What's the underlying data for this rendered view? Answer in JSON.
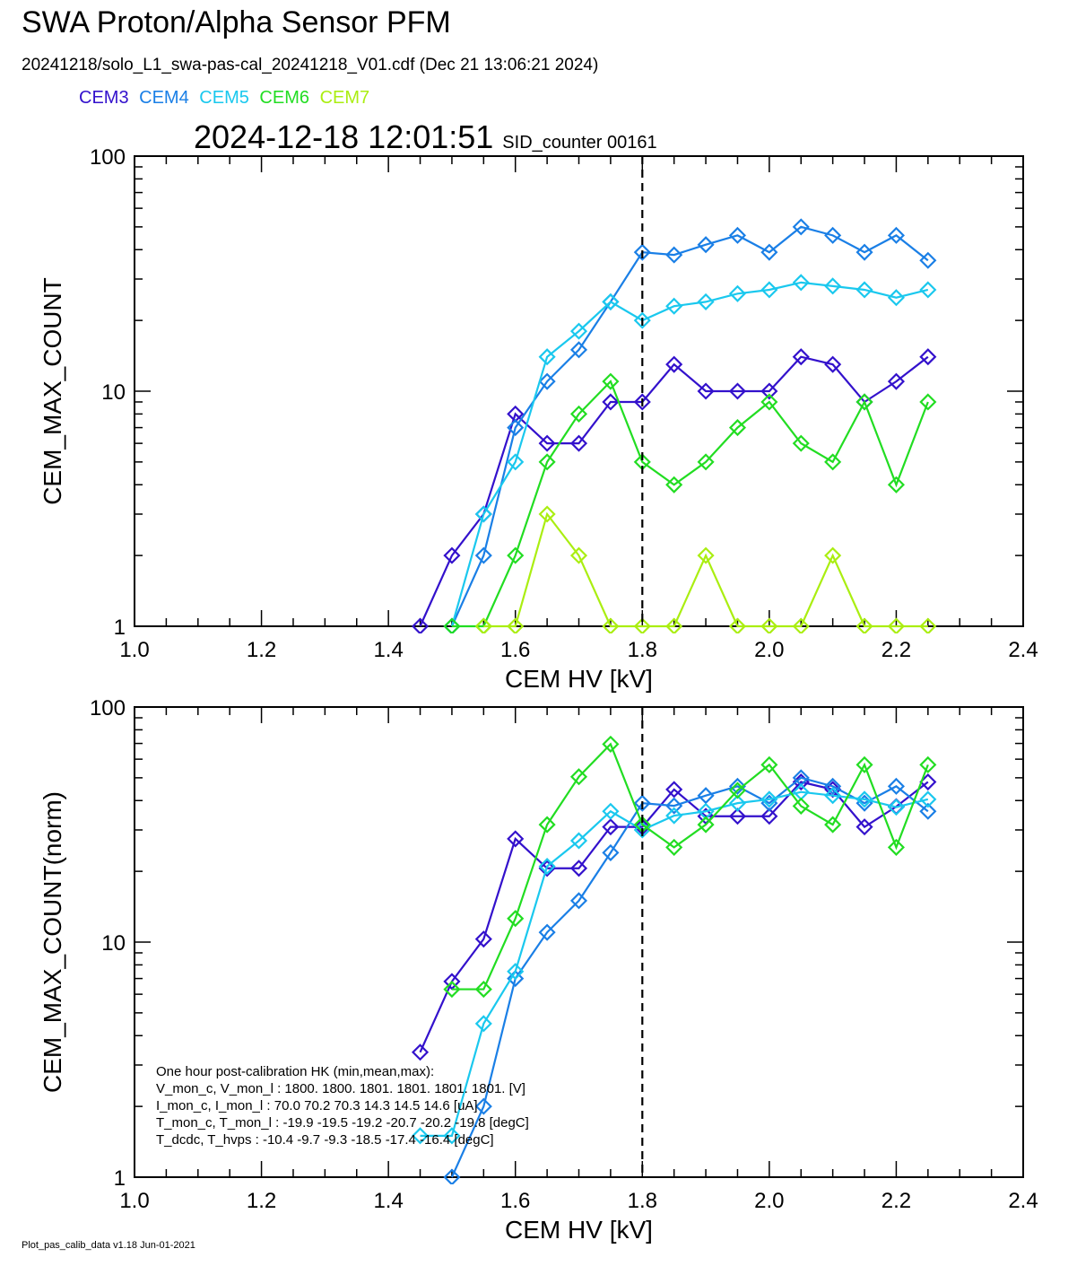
{
  "header": {
    "title": "SWA Proton/Alpha Sensor PFM",
    "file_line": "20241218/solo_L1_swa-pas-cal_20241218_V01.cdf  (Dec 21 13:06:21 2024)",
    "timestamp": "2024-12-18 12:01:51",
    "sid_counter": "SID_counter 00161"
  },
  "footer": "Plot_pas_calib_data v1.18 Jun-01-2021",
  "legend": [
    {
      "name": "CEM3",
      "color": "#3311cc"
    },
    {
      "name": "CEM4",
      "color": "#1a7fe6"
    },
    {
      "name": "CEM5",
      "color": "#1ac8ee"
    },
    {
      "name": "CEM6",
      "color": "#22dd22"
    },
    {
      "name": "CEM7",
      "color": "#aaee11"
    }
  ],
  "hk_box": {
    "lines": [
      "One hour post-calibration HK (min,mean,max):",
      "V_mon_c, V_mon_l :    1800.  1800.  1801.      1801.  1801.  1801.  [V]",
      "I_mon_c,  I_mon_l :      70.0   70.2   70.3        14.3   14.5   14.6  [uA]",
      "T_mon_c, T_mon_l :   -19.9  -19.5  -19.2       -20.7  -20.2  -19.8  [degC]",
      "T_dcdc,    T_hvps :     -10.4   -9.7   -9.3        -18.5  -17.4  -16.4  [degC]"
    ]
  },
  "chart_data": [
    {
      "type": "line",
      "title": "",
      "xlabel": "CEM HV [kV]",
      "ylabel": "CEM_MAX_COUNT",
      "xlim": [
        1.0,
        2.4
      ],
      "ylim": [
        1,
        100
      ],
      "yscale": "log",
      "vline_x": 1.8,
      "x_ticks": [
        "1.0",
        "1.2",
        "1.4",
        "1.6",
        "1.8",
        "2.0",
        "2.2",
        "2.4"
      ],
      "y_ticks": [
        "1",
        "10",
        "100"
      ],
      "x": [
        1.45,
        1.5,
        1.55,
        1.6,
        1.65,
        1.7,
        1.75,
        1.8,
        1.85,
        1.9,
        1.95,
        2.0,
        2.05,
        2.1,
        2.15,
        2.2,
        2.25
      ],
      "series": [
        {
          "name": "CEM3",
          "values": [
            1,
            2,
            3,
            8,
            6,
            6,
            9,
            9,
            13,
            10,
            10,
            10,
            14,
            13,
            9,
            11,
            14
          ]
        },
        {
          "name": "CEM4",
          "values": [
            null,
            1,
            2,
            7,
            11,
            15,
            24,
            39,
            38,
            42,
            46,
            39,
            50,
            46,
            39,
            46,
            36
          ]
        },
        {
          "name": "CEM5",
          "values": [
            null,
            1,
            3,
            5,
            14,
            18,
            24,
            20,
            23,
            24,
            26,
            27,
            29,
            28,
            27,
            25,
            27
          ]
        },
        {
          "name": "CEM6",
          "values": [
            null,
            1,
            1,
            2,
            5,
            8,
            11,
            5,
            4,
            5,
            7,
            9,
            6,
            5,
            9,
            4,
            9
          ]
        },
        {
          "name": "CEM7",
          "values": [
            null,
            null,
            1,
            1,
            3,
            2,
            1,
            1,
            1,
            2,
            1,
            1,
            1,
            2,
            1,
            1,
            1
          ]
        }
      ]
    },
    {
      "type": "line",
      "title": "",
      "xlabel": "CEM HV [kV]",
      "ylabel": "CEM_MAX_COUNT(norm)",
      "xlim": [
        1.0,
        2.4
      ],
      "ylim": [
        1,
        100
      ],
      "yscale": "log",
      "vline_x": 1.8,
      "x_ticks": [
        "1.0",
        "1.2",
        "1.4",
        "1.6",
        "1.8",
        "2.0",
        "2.2",
        "2.4"
      ],
      "y_ticks": [
        "1",
        "10",
        "100"
      ],
      "x": [
        1.45,
        1.5,
        1.55,
        1.6,
        1.65,
        1.7,
        1.75,
        1.8,
        1.85,
        1.9,
        1.95,
        2.0,
        2.05,
        2.1,
        2.15,
        2.2,
        2.25
      ],
      "series": [
        {
          "name": "CEM3",
          "values": [
            3.4,
            6.8,
            10.3,
            27.5,
            20.6,
            20.6,
            30.9,
            30.9,
            44.6,
            34.3,
            34.3,
            34.3,
            48.0,
            44.6,
            30.9,
            37.7,
            48.0
          ]
        },
        {
          "name": "CEM4",
          "values": [
            null,
            1.0,
            2.0,
            7.0,
            11.0,
            15.0,
            24.0,
            39.0,
            38.0,
            42.0,
            46.0,
            39.0,
            50.0,
            46.0,
            39.0,
            46.0,
            36.0
          ]
        },
        {
          "name": "CEM5",
          "values": [
            1.5,
            1.5,
            4.5,
            7.5,
            21.0,
            27.0,
            36.0,
            30.0,
            34.5,
            36.0,
            39.0,
            40.5,
            43.5,
            42.0,
            40.5,
            37.5,
            40.5
          ]
        },
        {
          "name": "CEM6",
          "values": [
            null,
            6.3,
            6.3,
            12.6,
            31.6,
            50.5,
            69.5,
            31.6,
            25.3,
            31.6,
            44.2,
            56.8,
            37.9,
            31.6,
            56.8,
            25.3,
            56.8
          ]
        }
      ]
    }
  ]
}
